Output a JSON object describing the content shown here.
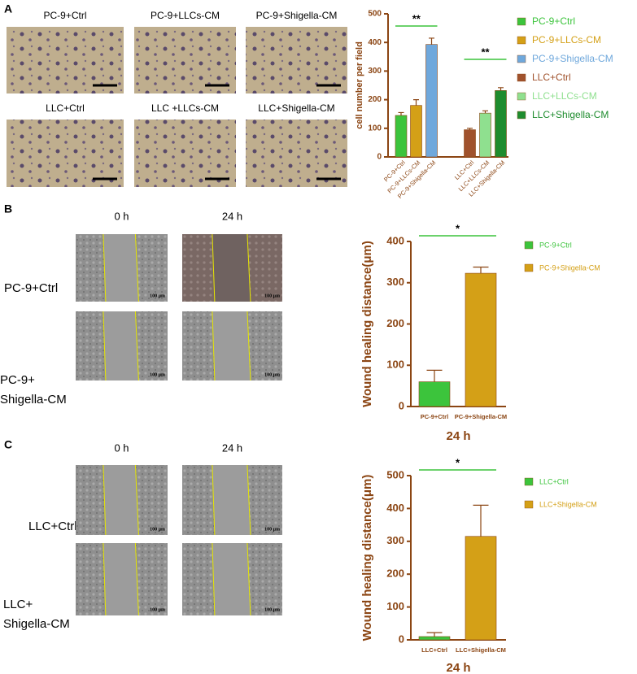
{
  "figure": {
    "panel_labels": [
      "A",
      "B",
      "C"
    ],
    "a_captions": [
      "PC-9+Ctrl",
      "PC-9+LLCs-CM",
      "PC-9+Shigella-CM",
      "LLC+Ctrl",
      "LLC +LLCs-CM",
      "LLC+Shigella-CM"
    ],
    "b_times": [
      "0 h",
      "24 h"
    ],
    "b_rows": [
      [
        "PC-9+Ctrl"
      ],
      [
        "PC-9+",
        "Shigella-CM"
      ]
    ],
    "c_times": [
      "0 h",
      "24 h"
    ],
    "c_rows": [
      [
        "LLC+Ctrl"
      ],
      [
        "LLC+",
        "Shigella-CM"
      ]
    ],
    "scale_label": "100 μm"
  },
  "chart_data": [
    {
      "type": "bar",
      "y_label": "cell number per field",
      "categories": [
        "PC-9+Ctrl",
        "PC-9+LLCs-CM",
        "PC-9+Shigella-CM",
        "LLC+Ctrl",
        "LLC+LLCs-CM",
        "LLC+Shigella-CM"
      ],
      "values": [
        145,
        180,
        393,
        95,
        153,
        232
      ],
      "errors": [
        10,
        20,
        22,
        5,
        8,
        10
      ],
      "colors": [
        "#3cc43c",
        "#d4a017",
        "#6fa8dc",
        "#a0522d",
        "#8fe08f",
        "#1e8c2e"
      ],
      "ylim": [
        0,
        500
      ],
      "yticks": [
        0,
        100,
        200,
        300,
        400,
        500
      ],
      "annotations": [
        "**",
        "**"
      ]
    },
    {
      "type": "bar",
      "y_label": "Wound healing distance(μm)",
      "x_label": "24 h",
      "categories": [
        "PC-9+Ctrl",
        "PC-9+Shigella-CM"
      ],
      "values": [
        60,
        323
      ],
      "errors": [
        28,
        15
      ],
      "colors": [
        "#3cc43c",
        "#d4a017"
      ],
      "ylim": [
        0,
        400
      ],
      "yticks": [
        0,
        100,
        200,
        300,
        400
      ],
      "annotations": [
        "*"
      ]
    },
    {
      "type": "bar",
      "y_label": "Wound healing distance(μm)",
      "x_label": "24 h",
      "categories": [
        "LLC+Ctrl",
        "LLC+Shigella-CM"
      ],
      "values": [
        10,
        315
      ],
      "errors": [
        12,
        95
      ],
      "colors": [
        "#3cc43c",
        "#d4a017"
      ],
      "ylim": [
        0,
        500
      ],
      "yticks": [
        0,
        100,
        200,
        300,
        400,
        500
      ],
      "annotations": [
        "*"
      ]
    }
  ]
}
